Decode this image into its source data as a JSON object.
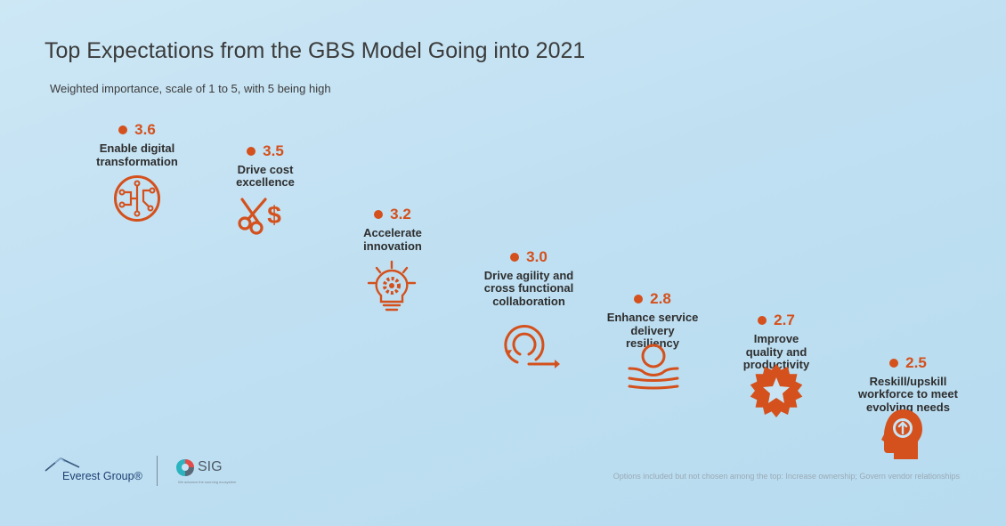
{
  "title": "Top Expectations from the GBS Model Going into 2021",
  "subtitle": "Weighted importance, scale of 1 to 5, with 5 being high",
  "footnote": "Options included but not chosen among the top: Increase ownership; Govern vendor relationships",
  "logos": {
    "everest": "Everest Group®",
    "sig": "SIG",
    "sig_tagline": "We advance the sourcing ecosystem"
  },
  "colors": {
    "accent": "#d4501c",
    "text": "#2e2e2e",
    "background": "#c3e1f3"
  },
  "chart_data": {
    "type": "scatter",
    "title": "Top Expectations from the GBS Model Going into 2021",
    "subtitle": "Weighted importance, scale of 1 to 5, with 5 being high",
    "ylim": [
      1,
      5
    ],
    "grid": false,
    "points": [
      {
        "label": "Enable digital\ntransformation",
        "value": 3.6,
        "value_text": "3.6",
        "icon": "circuit-icon"
      },
      {
        "label": "Drive cost\nexcellence",
        "value": 3.5,
        "value_text": "3.5",
        "icon": "scissors-dollar-icon"
      },
      {
        "label": "Accelerate\ninnovation",
        "value": 3.2,
        "value_text": "3.2",
        "icon": "lightbulb-gear-icon"
      },
      {
        "label": "Drive agility and\ncross functional\ncollaboration",
        "value": 3.0,
        "value_text": "3.0",
        "icon": "circular-arrows-icon"
      },
      {
        "label": "Enhance service\ndelivery\nresiliency",
        "value": 2.8,
        "value_text": "2.8",
        "icon": "ball-on-wave-icon"
      },
      {
        "label": "Improve\nquality and\nproductivity",
        "value": 2.7,
        "value_text": "2.7",
        "icon": "star-badge-icon"
      },
      {
        "label": "Reskill/upskill\nworkforce to meet\nevolving needs",
        "value": 2.5,
        "value_text": "2.5",
        "icon": "head-arrow-icon"
      }
    ]
  }
}
